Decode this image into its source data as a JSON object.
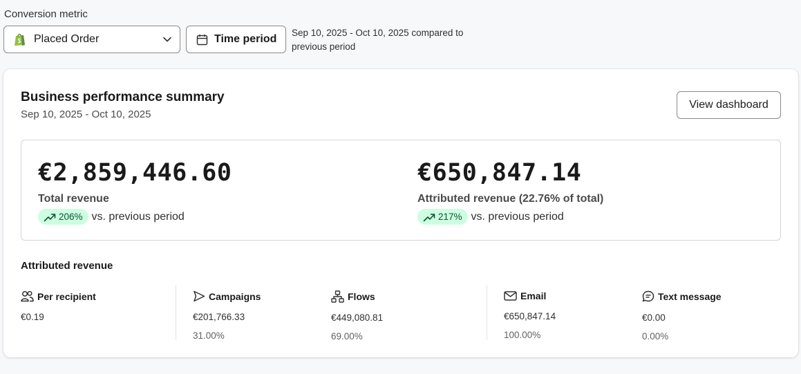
{
  "filters": {
    "conversion_metric_label": "Conversion metric",
    "metric_value": "Placed Order",
    "time_period_label": "Time period",
    "period_line1": "Sep 10, 2025 - Oct 10, 2025 compared to",
    "period_line2": "previous period"
  },
  "card": {
    "title": "Business performance summary",
    "subtitle": "Sep 10, 2025 - Oct 10, 2025",
    "view_button": "View dashboard"
  },
  "summary": {
    "total": {
      "value": "€2,859,446.60",
      "label": "Total revenue",
      "change": "206%",
      "vs": "vs. previous period"
    },
    "attributed": {
      "value": "€650,847.14",
      "label": "Attributed revenue (22.76% of total)",
      "change": "217%",
      "vs": "vs. previous period"
    }
  },
  "attributed_revenue": {
    "heading": "Attributed revenue",
    "metrics": [
      {
        "label": "Per recipient",
        "value": "€0.19",
        "pct": ""
      },
      {
        "label": "Campaigns",
        "value": "€201,766.33",
        "pct": "31.00%"
      },
      {
        "label": "Flows",
        "value": "€449,080.81",
        "pct": "69.00%"
      },
      {
        "label": "Email",
        "value": "€650,847.14",
        "pct": "100.00%"
      },
      {
        "label": "Text message",
        "value": "€0.00",
        "pct": "0.00%"
      }
    ]
  },
  "colors": {
    "badge_bg": "#cdfee1",
    "badge_fg": "#0c5132",
    "shopify_green": "#95bf47"
  },
  "icons": [
    "shopify-bag-icon",
    "chevron-down-icon",
    "calendar-icon",
    "trend-up-icon",
    "people-icon",
    "send-icon",
    "flow-icon",
    "mail-icon",
    "chat-icon"
  ]
}
